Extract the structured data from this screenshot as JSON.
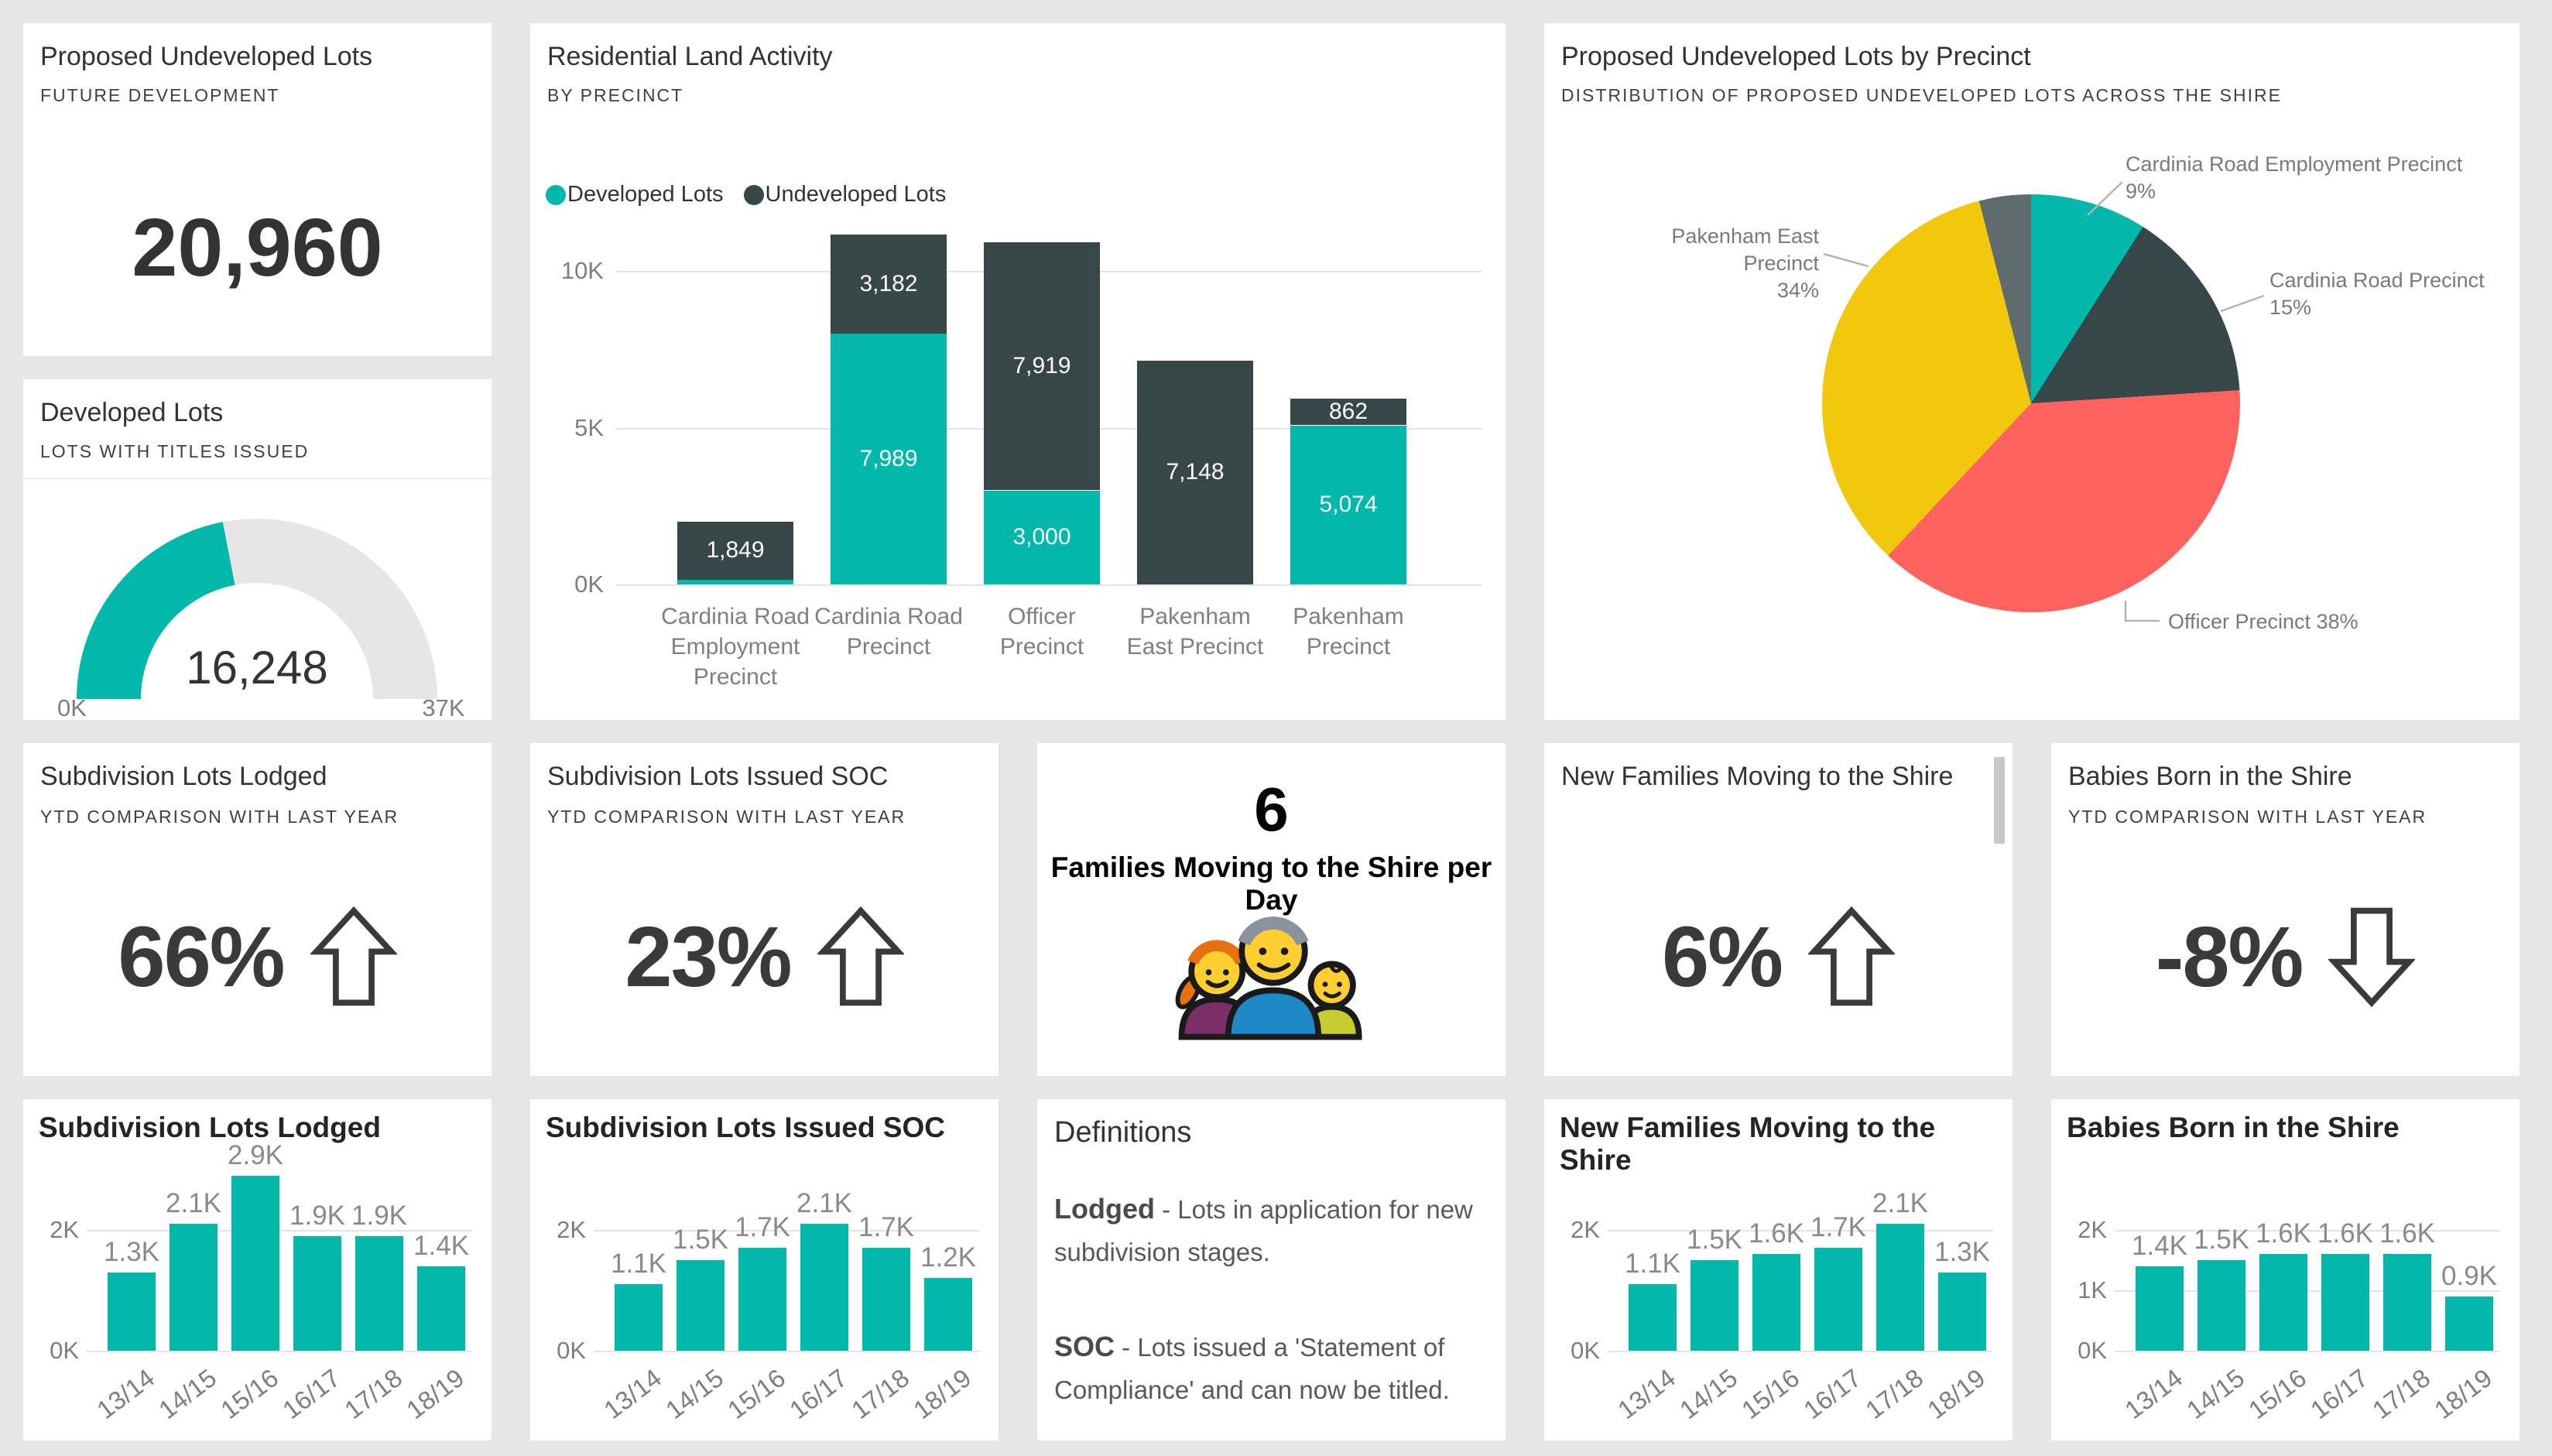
{
  "palette": {
    "background": "#E6E6E6",
    "card": "#FFFFFF",
    "teal": "#01B8AA",
    "dark": "#374649",
    "coral": "#FD625E",
    "yellow": "#F2C80F",
    "gray_slice": "#5F6B6D",
    "title_text": "#333333",
    "axis_text": "#7F7F7F",
    "gauge_track": "#E6E6E6"
  },
  "cards": {
    "proposed": {
      "title": "Proposed Undeveloped Lots",
      "subtitle": "FUTURE DEVELOPMENT",
      "value": "20,960"
    },
    "kpi_lodged": {
      "title": "Subdivision Lots Lodged",
      "subtitle": "YTD COMPARISON WITH LAST YEAR",
      "value": "66%",
      "direction": "up"
    },
    "kpi_soc": {
      "title": "Subdivision Lots Issued SOC",
      "subtitle": "YTD COMPARISON WITH LAST YEAR",
      "value": "23%",
      "direction": "up"
    },
    "families": {
      "value": "6",
      "label": "Families Moving to the Shire per Day"
    },
    "kpi_new_families": {
      "title": "New Families Moving to the Shire",
      "value": "6%",
      "direction": "up"
    },
    "kpi_babies": {
      "title": "Babies Born in the Shire",
      "subtitle": "YTD COMPARISON WITH LAST YEAR",
      "value": "-8%",
      "direction": "down"
    },
    "definitions": {
      "title": "Definitions",
      "term1": "Lodged",
      "def1": " - Lots in application for new subdivision stages.",
      "term2": "SOC",
      "def2": " - Lots issued a 'Statement of Compliance' and can now be titled."
    }
  },
  "chart_data": [
    {
      "id": "residential",
      "type": "bar",
      "variant": "stacked",
      "title": "Residential Land Activity",
      "subtitle": "BY PRECINCT",
      "legend_position": "top",
      "grid": true,
      "categories": [
        "Cardinia Road Employment Precinct",
        "Cardinia Road Precinct",
        "Officer Precinct",
        "Pakenham East Precinct",
        "Pakenham Precinct"
      ],
      "series": [
        {
          "name": "Developed Lots",
          "color": "#01B8AA",
          "values": [
            150,
            7989,
            3000,
            0,
            5074
          ],
          "labels": [
            "",
            "7,989",
            "3,000",
            "",
            "5,074"
          ]
        },
        {
          "name": "Undeveloped Lots",
          "color": "#374649",
          "values": [
            1849,
            3182,
            7919,
            7148,
            862
          ],
          "labels": [
            "1,849",
            "3,182",
            "7,919",
            "7,148",
            "862"
          ]
        }
      ],
      "y_ticks": [
        {
          "label": "0K",
          "value": 0
        },
        {
          "label": "5K",
          "value": 5000
        },
        {
          "label": "10K",
          "value": 10000
        }
      ],
      "ylim": [
        0,
        11500
      ]
    },
    {
      "id": "pie",
      "type": "pie",
      "title": "Proposed Undeveloped Lots by Precinct",
      "subtitle": "DISTRIBUTION OF PROPOSED UNDEVELOPED LOTS ACROSS THE SHIRE",
      "start_angle_deg": 0,
      "clockwise": true,
      "slices": [
        {
          "name": "Cardinia Road Employment Precinct",
          "pct": 9,
          "color": "#01B8AA",
          "label_visible": true
        },
        {
          "name": "Cardinia Road Precinct",
          "pct": 15,
          "color": "#374649",
          "label_visible": true
        },
        {
          "name": "Officer Precinct",
          "pct": 38,
          "color": "#FD625E",
          "label_visible": true
        },
        {
          "name": "Pakenham East Precinct",
          "pct": 34,
          "color": "#F2C80F",
          "label_visible": true
        },
        {
          "name": "",
          "pct": 4,
          "color": "#5F6B6D",
          "label_visible": false
        }
      ]
    },
    {
      "id": "gauge",
      "type": "gauge",
      "title": "Developed Lots",
      "subtitle": "LOTS WITH TITLES ISSUED",
      "value": 16248,
      "min": 0,
      "max": 37000,
      "value_label": "16,248",
      "min_label": "0K",
      "max_label": "37K",
      "color": "#01B8AA",
      "track_color": "#E6E6E6"
    },
    {
      "id": "lodged_trend",
      "type": "bar",
      "title": "Subdivision Lots Lodged",
      "categories": [
        "13/14",
        "14/15",
        "15/16",
        "16/17",
        "17/18",
        "18/19"
      ],
      "values": [
        1.3,
        2.1,
        2.9,
        1.9,
        1.9,
        1.4
      ],
      "labels": [
        "1.3K",
        "2.1K",
        "2.9K",
        "1.9K",
        "1.9K",
        "1.4K"
      ],
      "unit": "K",
      "color": "#01B8AA",
      "y_ticks": [
        {
          "label": "0K",
          "value": 0
        },
        {
          "label": "2K",
          "value": 2
        }
      ],
      "ylim": [
        0,
        3.1
      ],
      "grid": true
    },
    {
      "id": "soc_trend",
      "type": "bar",
      "title": "Subdivision Lots Issued SOC",
      "categories": [
        "13/14",
        "14/15",
        "15/16",
        "16/17",
        "17/18",
        "18/19"
      ],
      "values": [
        1.1,
        1.5,
        1.7,
        2.1,
        1.7,
        1.2
      ],
      "labels": [
        "1.1K",
        "1.5K",
        "1.7K",
        "2.1K",
        "1.7K",
        "1.2K"
      ],
      "unit": "K",
      "color": "#01B8AA",
      "y_ticks": [
        {
          "label": "0K",
          "value": 0
        },
        {
          "label": "2K",
          "value": 2
        }
      ],
      "ylim": [
        0,
        3.1
      ],
      "grid": true
    },
    {
      "id": "new_families_trend",
      "type": "bar",
      "title": "New Families Moving to the Shire",
      "categories": [
        "13/14",
        "14/15",
        "15/16",
        "16/17",
        "17/18",
        "18/19"
      ],
      "values": [
        1.1,
        1.5,
        1.6,
        1.7,
        2.1,
        1.3
      ],
      "labels": [
        "1.1K",
        "1.5K",
        "1.6K",
        "1.7K",
        "2.1K",
        "1.3K"
      ],
      "unit": "K",
      "color": "#01B8AA",
      "y_ticks": [
        {
          "label": "0K",
          "value": 0
        },
        {
          "label": "2K",
          "value": 2
        }
      ],
      "ylim": [
        0,
        3.1
      ],
      "grid": true
    },
    {
      "id": "babies_trend",
      "type": "bar",
      "title": "Babies Born in the Shire",
      "categories": [
        "13/14",
        "14/15",
        "15/16",
        "16/17",
        "17/18",
        "18/19"
      ],
      "values": [
        1.4,
        1.5,
        1.6,
        1.6,
        1.6,
        0.9
      ],
      "labels": [
        "1.4K",
        "1.5K",
        "1.6K",
        "1.6K",
        "1.6K",
        "0.9K"
      ],
      "unit": "K",
      "color": "#01B8AA",
      "y_ticks": [
        {
          "label": "0K",
          "value": 0
        },
        {
          "label": "1K",
          "value": 1
        },
        {
          "label": "2K",
          "value": 2
        }
      ],
      "ylim": [
        0,
        3.1
      ],
      "grid": true
    }
  ]
}
